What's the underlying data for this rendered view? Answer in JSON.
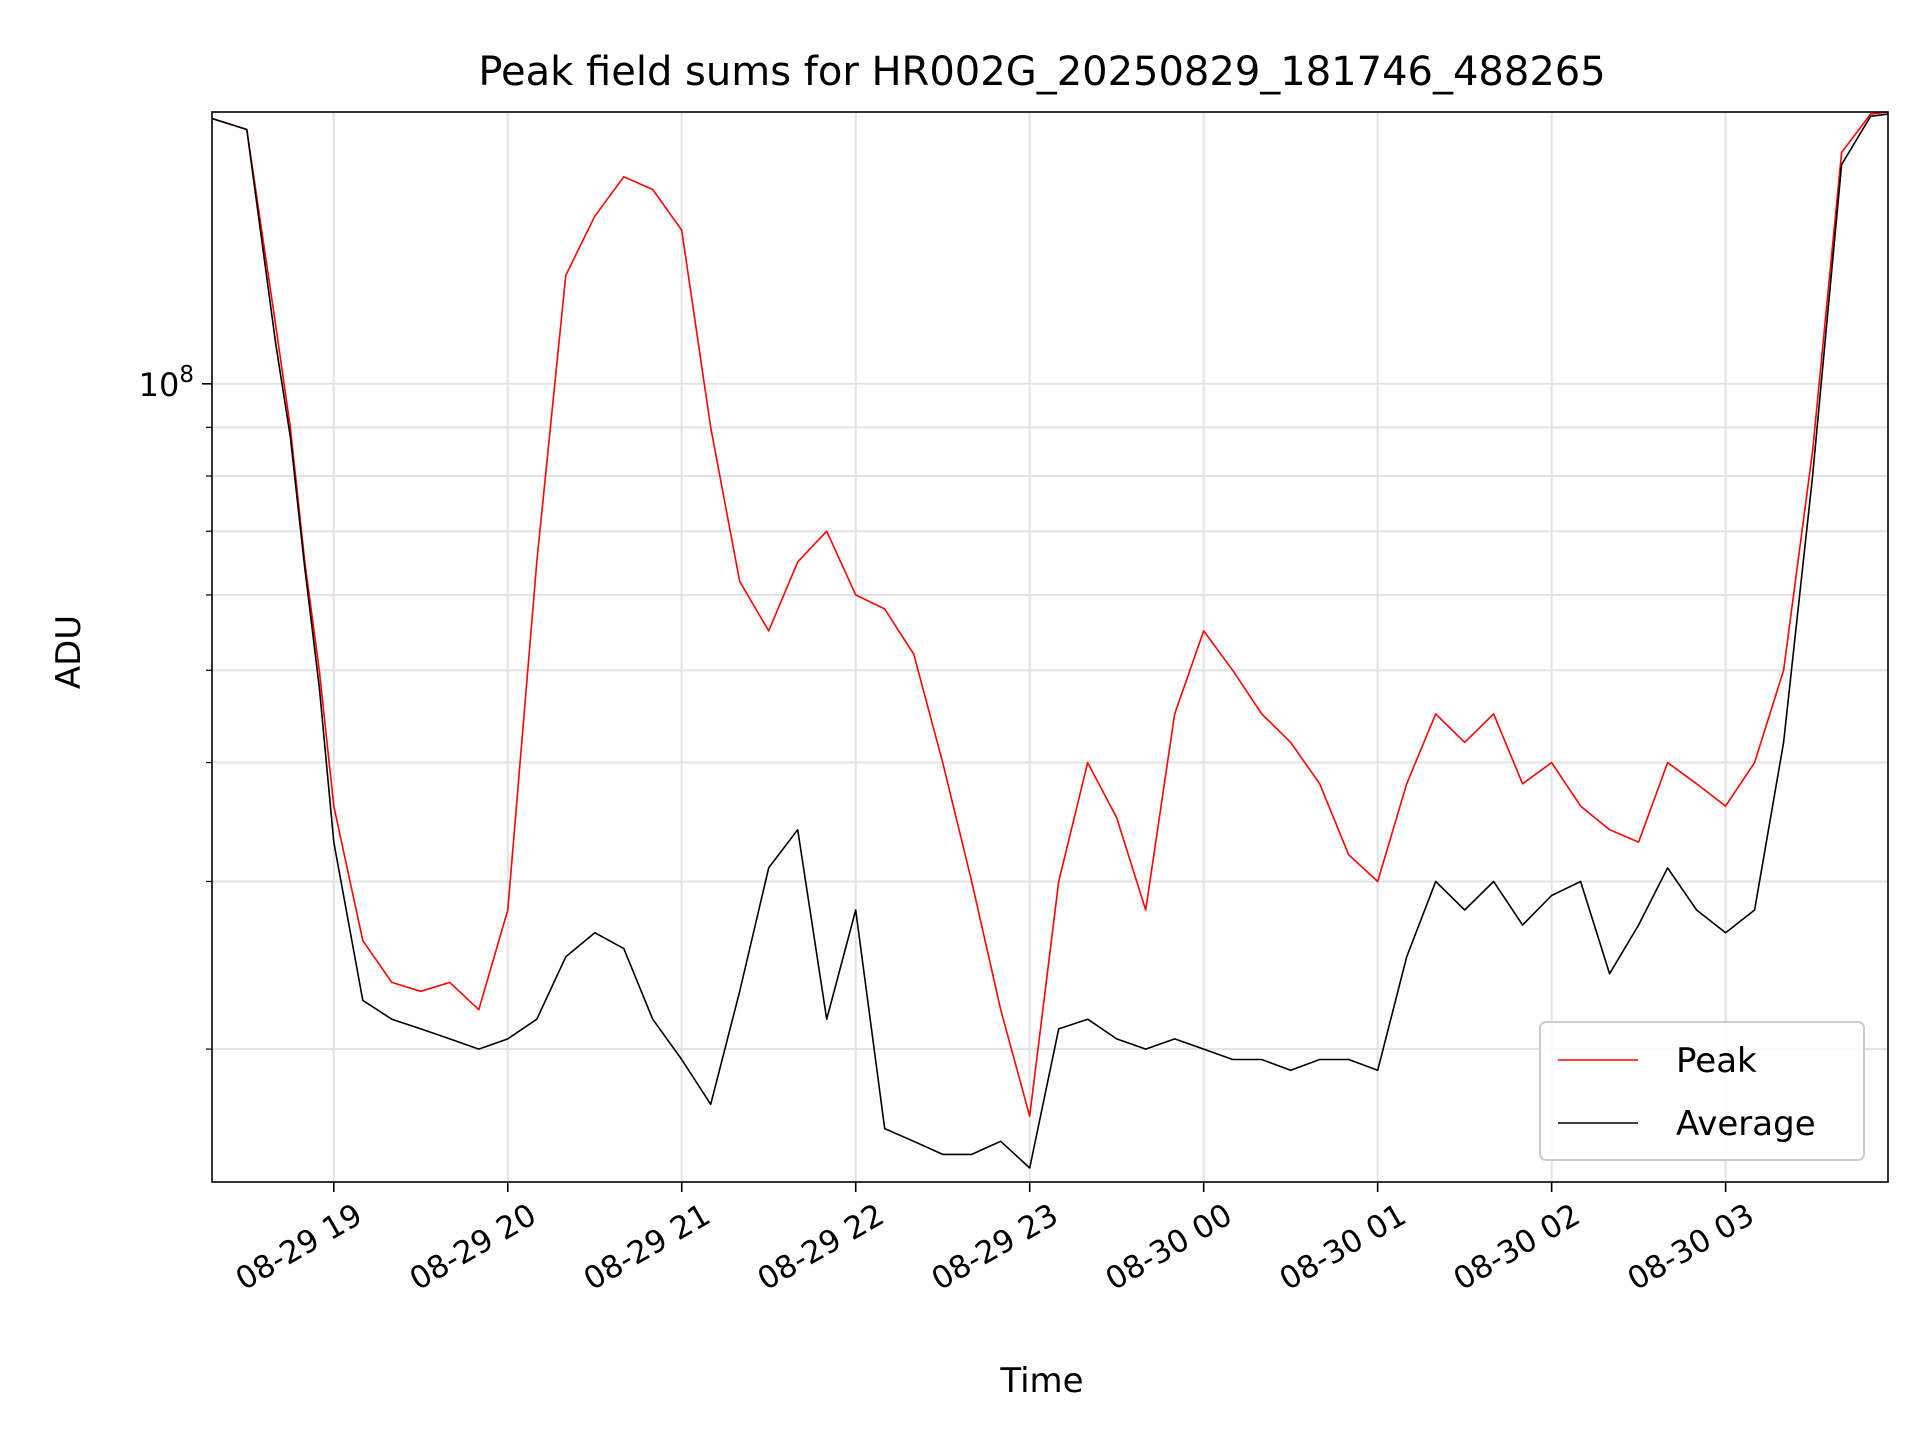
{
  "chart_data": {
    "type": "line",
    "title": "Peak field sums for HR002G_20250829_181746_488265",
    "xlabel": "Time",
    "ylabel": "ADU",
    "x_scale": "time",
    "y_scale": "log",
    "xlim": [
      "2025-08-29 18:18",
      "2025-08-30 03:56"
    ],
    "ylim": [
      14500000,
      193000000
    ],
    "grid": true,
    "legend_position": "bottom-right",
    "x_tick_labels": [
      "08-29 19",
      "08-29 20",
      "08-29 21",
      "08-29 22",
      "08-29 23",
      "08-30 00",
      "08-30 01",
      "08-30 02",
      "08-30 03"
    ],
    "x_tick_times": [
      "2025-08-29 19:00",
      "2025-08-29 20:00",
      "2025-08-29 21:00",
      "2025-08-29 22:00",
      "2025-08-29 23:00",
      "2025-08-30 00:00",
      "2025-08-30 01:00",
      "2025-08-30 02:00",
      "2025-08-30 03:00"
    ],
    "y_major_tick_labels": [
      {
        "value": 100000000,
        "base": "10",
        "exponent": "8"
      }
    ],
    "y_minor_ticks": [
      20000000,
      30000000,
      40000000,
      50000000,
      60000000,
      70000000,
      80000000,
      90000000,
      200000000
    ],
    "series": [
      {
        "name": "Peak",
        "color": "#ff0000",
        "x": [
          "2025-08-29 18:18",
          "2025-08-29 18:30",
          "2025-08-29 18:40",
          "2025-08-29 18:45",
          "2025-08-29 18:50",
          "2025-08-29 18:55",
          "2025-08-29 19:00",
          "2025-08-29 19:10",
          "2025-08-29 19:20",
          "2025-08-29 19:30",
          "2025-08-29 19:40",
          "2025-08-29 19:50",
          "2025-08-29 20:00",
          "2025-08-29 20:10",
          "2025-08-29 20:20",
          "2025-08-29 20:30",
          "2025-08-29 20:40",
          "2025-08-29 20:50",
          "2025-08-29 21:00",
          "2025-08-29 21:10",
          "2025-08-29 21:20",
          "2025-08-29 21:30",
          "2025-08-29 21:40",
          "2025-08-29 21:50",
          "2025-08-29 22:00",
          "2025-08-29 22:10",
          "2025-08-29 22:20",
          "2025-08-29 22:30",
          "2025-08-29 22:40",
          "2025-08-29 22:50",
          "2025-08-29 23:00",
          "2025-08-29 23:10",
          "2025-08-29 23:20",
          "2025-08-29 23:30",
          "2025-08-29 23:40",
          "2025-08-29 23:50",
          "2025-08-30 00:00",
          "2025-08-30 00:10",
          "2025-08-30 00:20",
          "2025-08-30 00:30",
          "2025-08-30 00:40",
          "2025-08-30 00:50",
          "2025-08-30 01:00",
          "2025-08-30 01:10",
          "2025-08-30 01:20",
          "2025-08-30 01:30",
          "2025-08-30 01:40",
          "2025-08-30 01:50",
          "2025-08-30 02:00",
          "2025-08-30 02:10",
          "2025-08-30 02:20",
          "2025-08-30 02:30",
          "2025-08-30 02:40",
          "2025-08-30 02:50",
          "2025-08-30 03:00",
          "2025-08-30 03:10",
          "2025-08-30 03:20",
          "2025-08-30 03:30",
          "2025-08-30 03:40",
          "2025-08-30 03:50",
          "2025-08-30 03:56"
        ],
        "values": [
          190000000,
          185000000,
          115000000,
          90000000,
          65000000,
          50000000,
          36000000,
          26000000,
          23500000,
          23000000,
          23500000,
          22000000,
          28000000,
          65000000,
          130000000,
          150000000,
          165000000,
          160000000,
          145000000,
          90000000,
          62000000,
          55000000,
          65000000,
          70000000,
          60000000,
          58000000,
          52000000,
          40000000,
          30000000,
          22000000,
          17000000,
          30000000,
          40000000,
          35000000,
          28000000,
          45000000,
          55000000,
          50000000,
          45000000,
          42000000,
          38000000,
          32000000,
          30000000,
          38000000,
          45000000,
          42000000,
          45000000,
          38000000,
          40000000,
          36000000,
          34000000,
          33000000,
          40000000,
          38000000,
          36000000,
          40000000,
          50000000,
          85000000,
          175000000,
          192000000,
          193000000
        ]
      },
      {
        "name": "Average",
        "color": "#000000",
        "x": [
          "2025-08-29 18:18",
          "2025-08-29 18:30",
          "2025-08-29 18:40",
          "2025-08-29 18:45",
          "2025-08-29 18:50",
          "2025-08-29 18:55",
          "2025-08-29 19:00",
          "2025-08-29 19:10",
          "2025-08-29 19:20",
          "2025-08-29 19:30",
          "2025-08-29 19:40",
          "2025-08-29 19:50",
          "2025-08-29 20:00",
          "2025-08-29 20:10",
          "2025-08-29 20:20",
          "2025-08-29 20:30",
          "2025-08-29 20:40",
          "2025-08-29 20:50",
          "2025-08-29 21:00",
          "2025-08-29 21:10",
          "2025-08-29 21:20",
          "2025-08-29 21:30",
          "2025-08-29 21:40",
          "2025-08-29 21:50",
          "2025-08-29 22:00",
          "2025-08-29 22:10",
          "2025-08-29 22:20",
          "2025-08-29 22:30",
          "2025-08-29 22:40",
          "2025-08-29 22:50",
          "2025-08-29 23:00",
          "2025-08-29 23:10",
          "2025-08-29 23:20",
          "2025-08-29 23:30",
          "2025-08-29 23:40",
          "2025-08-29 23:50",
          "2025-08-30 00:00",
          "2025-08-30 00:10",
          "2025-08-30 00:20",
          "2025-08-30 00:30",
          "2025-08-30 00:40",
          "2025-08-30 00:50",
          "2025-08-30 01:00",
          "2025-08-30 01:10",
          "2025-08-30 01:20",
          "2025-08-30 01:30",
          "2025-08-30 01:40",
          "2025-08-30 01:50",
          "2025-08-30 02:00",
          "2025-08-30 02:10",
          "2025-08-30 02:20",
          "2025-08-30 02:30",
          "2025-08-30 02:40",
          "2025-08-30 02:50",
          "2025-08-30 03:00",
          "2025-08-30 03:10",
          "2025-08-30 03:20",
          "2025-08-30 03:30",
          "2025-08-30 03:40",
          "2025-08-30 03:50",
          "2025-08-30 03:56"
        ],
        "values": [
          190000000,
          185000000,
          110000000,
          88000000,
          64000000,
          48000000,
          33000000,
          22500000,
          21500000,
          21000000,
          20500000,
          20000000,
          20500000,
          21500000,
          25000000,
          26500000,
          25500000,
          21500000,
          19500000,
          17500000,
          23000000,
          31000000,
          34000000,
          21500000,
          28000000,
          16500000,
          16000000,
          15500000,
          15500000,
          16000000,
          15000000,
          21000000,
          21500000,
          20500000,
          20000000,
          20500000,
          20000000,
          19500000,
          19500000,
          19000000,
          19500000,
          19500000,
          19000000,
          25000000,
          30000000,
          28000000,
          30000000,
          27000000,
          29000000,
          30000000,
          24000000,
          27000000,
          31000000,
          28000000,
          26500000,
          28000000,
          42000000,
          80000000,
          170000000,
          191000000,
          192000000
        ]
      }
    ]
  }
}
